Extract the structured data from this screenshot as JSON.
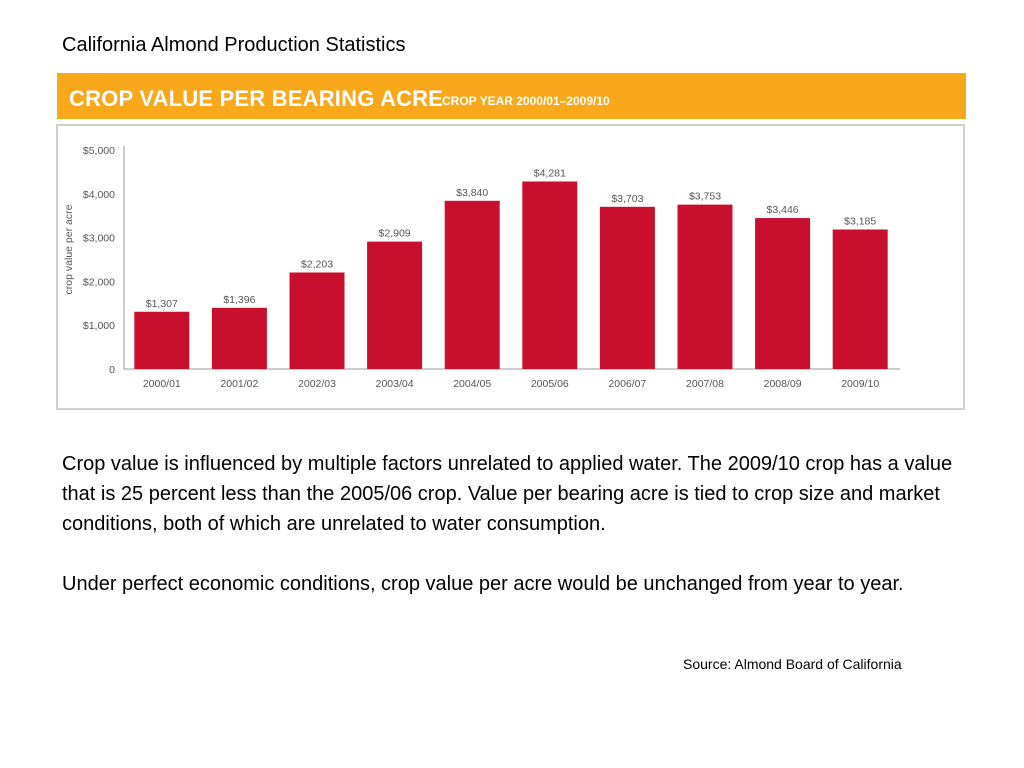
{
  "slide": {
    "title": "California Almond Production Statistics",
    "source": "Source: Almond Board of California",
    "paragraphs": [
      "Crop value is influenced by multiple factors unrelated to applied water.  The 2009/10 crop has a value that is 25 percent less than the 2005/06 crop.  Value per bearing acre is tied to crop size and market conditions, both of which are unrelated to water consumption.",
      "Under perfect economic conditions, crop value per acre would be unchanged from year to year."
    ]
  },
  "colors": {
    "banner": "#f9a81b",
    "bar": "#c8102e",
    "axis": "#999999",
    "frame": "#cfcfcf"
  },
  "chart_data": {
    "type": "bar",
    "title": "CROP VALUE PER BEARING ACRE",
    "subtitle": "CROP YEAR 2000/01–2009/10",
    "xlabel": "",
    "ylabel": "crop value per acre",
    "ylim": [
      0,
      5000
    ],
    "yticks": [
      0,
      1000,
      2000,
      3000,
      4000,
      5000
    ],
    "ytick_labels": [
      "0",
      "$1,000",
      "$2,000",
      "$3,000",
      "$4,000",
      "$5,000"
    ],
    "grid": false,
    "legend": "none",
    "categories": [
      "2000/01",
      "2001/02",
      "2002/03",
      "2003/04",
      "2004/05",
      "2005/06",
      "2006/07",
      "2007/08",
      "2008/09",
      "2009/10"
    ],
    "values": [
      1307,
      1396,
      2203,
      2909,
      3840,
      4281,
      3703,
      3753,
      3446,
      3185
    ],
    "value_labels": [
      "$1,307",
      "$1,396",
      "$2,203",
      "$2,909",
      "$3,840",
      "$4,281",
      "$3,703",
      "$3,753",
      "$3,446",
      "$3,185"
    ]
  }
}
